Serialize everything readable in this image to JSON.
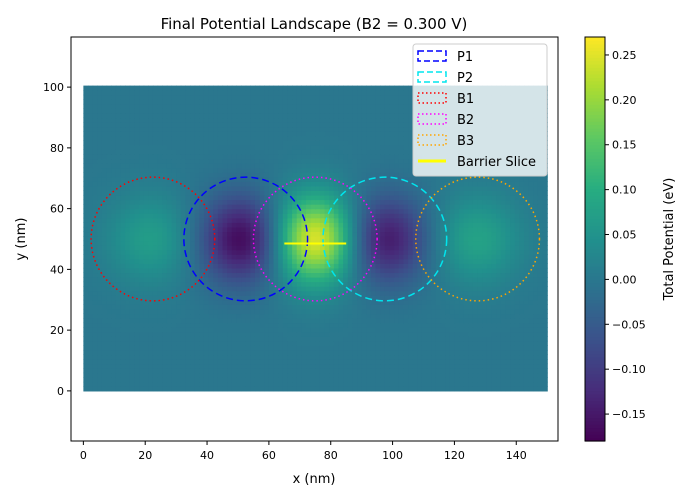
{
  "chart_data": {
    "type": "heatmap",
    "title": "Final Potential Landscape (B2 = 0.300 V)",
    "xlabel": "x (nm)",
    "ylabel": "y (nm)",
    "colorbar_label": "Total Potential (eV)",
    "xlim": [
      -4,
      153.5
    ],
    "ylim": [
      -16.5,
      116.5
    ],
    "x_ticks": [
      0,
      20,
      40,
      60,
      80,
      100,
      120,
      140
    ],
    "y_ticks": [
      0,
      20,
      40,
      60,
      80,
      100
    ],
    "x_tick_labels": [
      "0",
      "20",
      "40",
      "60",
      "80",
      "100",
      "120",
      "140"
    ],
    "y_tick_labels": [
      "0",
      "20",
      "40",
      "60",
      "80",
      "100"
    ],
    "domain": {
      "x": [
        0,
        150
      ],
      "y": [
        0,
        100
      ]
    },
    "colormap": "viridis",
    "color_range": [
      -0.18,
      0.27
    ],
    "colorbar_ticks": [
      -0.15,
      -0.1,
      -0.05,
      0.0,
      0.05,
      0.1,
      0.15,
      0.2,
      0.25
    ],
    "colorbar_tick_labels": [
      "−0.15",
      "−0.10",
      "−0.05",
      "0.00",
      "0.05",
      "0.10",
      "0.15",
      "0.20",
      "0.25"
    ],
    "field": {
      "baseline": 0.0,
      "wells": [
        {
          "name": "P1",
          "x": 52,
          "y": 50,
          "radius": 20,
          "amplitude": -0.18
        },
        {
          "name": "P2",
          "x": 97,
          "y": 50,
          "radius": 20,
          "amplitude": -0.16
        },
        {
          "name": "B1",
          "x": 22,
          "y": 50,
          "radius": 20,
          "amplitude": 0.07
        },
        {
          "name": "B2",
          "x": 75,
          "y": 50,
          "radius": 20,
          "amplitude": 0.27
        },
        {
          "name": "B3",
          "x": 127,
          "y": 50,
          "radius": 20,
          "amplitude": 0.08
        }
      ]
    },
    "gate_outlines": [
      {
        "name": "P1",
        "cx": 52.5,
        "cy": 50,
        "r": 20,
        "color": "#0000ff",
        "style": "dashed"
      },
      {
        "name": "P2",
        "cx": 97.5,
        "cy": 50,
        "r": 20,
        "color": "#00e5ee",
        "style": "dashed"
      },
      {
        "name": "B1",
        "cx": 22.5,
        "cy": 50,
        "r": 20,
        "color": "#ff0000",
        "style": "dotted"
      },
      {
        "name": "B2",
        "cx": 75,
        "cy": 50,
        "r": 20,
        "color": "#ff00ff",
        "style": "dotted"
      },
      {
        "name": "B3",
        "cx": 127.5,
        "cy": 50,
        "r": 20,
        "color": "#ffa500",
        "style": "dotted"
      }
    ],
    "barrier_slice": {
      "name": "Barrier Slice",
      "x": [
        65,
        85
      ],
      "y": 48.5,
      "color": "#ffff00"
    },
    "legend": {
      "placement": "top-right",
      "entries": [
        {
          "label": "P1",
          "color": "#0000ff",
          "style": "dashed-box"
        },
        {
          "label": "P2",
          "color": "#00e5ee",
          "style": "dashed-box"
        },
        {
          "label": "B1",
          "color": "#ff0000",
          "style": "dotted-box"
        },
        {
          "label": "B2",
          "color": "#ff00ff",
          "style": "dotted-box"
        },
        {
          "label": "B3",
          "color": "#ffa500",
          "style": "dotted-box"
        },
        {
          "label": "Barrier Slice",
          "color": "#ffff00",
          "style": "line"
        }
      ]
    }
  }
}
